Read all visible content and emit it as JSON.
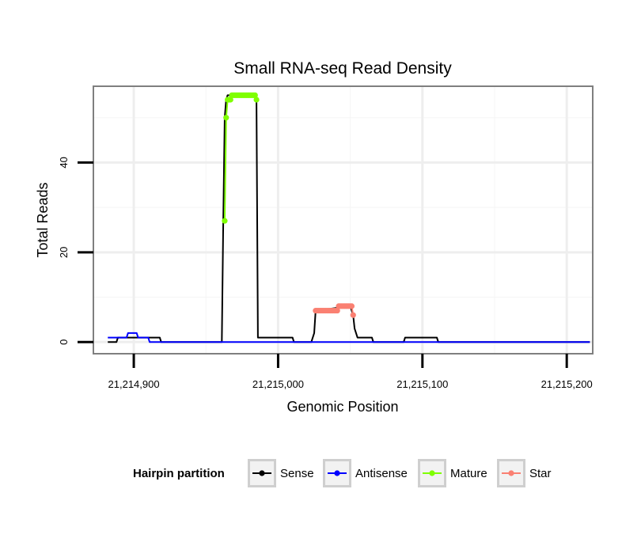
{
  "chart_data": {
    "type": "line",
    "title": "Small RNA-seq Read Density",
    "xlabel": "Genomic Position",
    "ylabel": "Total Reads",
    "xlim": [
      21214872,
      21215218
    ],
    "ylim": [
      -2.6,
      57
    ],
    "x_ticks": [
      21214900,
      21215000,
      21215100,
      21215200
    ],
    "x_tick_labels": [
      "21,214,900",
      "21,215,000",
      "21,215,100",
      "21,215,200"
    ],
    "y_ticks": [
      0,
      20,
      40
    ],
    "y_tick_labels": [
      "0",
      "20",
      "40"
    ],
    "grid": true,
    "legend": {
      "title": "Hairpin partition",
      "position": "bottom",
      "entries": [
        {
          "label": "Sense",
          "color": "#000000"
        },
        {
          "label": "Antisense",
          "color": "#0000ff"
        },
        {
          "label": "Mature",
          "color": "#7fff00"
        },
        {
          "label": "Star",
          "color": "#fa8072"
        }
      ]
    },
    "series": [
      {
        "name": "Sense",
        "color": "#000000",
        "points": [
          [
            21214882,
            0
          ],
          [
            21214888,
            0
          ],
          [
            21214889,
            1
          ],
          [
            21214918,
            1
          ],
          [
            21214919,
            0
          ],
          [
            21214961,
            0
          ],
          [
            21214962,
            27
          ],
          [
            21214963,
            50
          ],
          [
            21214964,
            54
          ],
          [
            21214965,
            55
          ],
          [
            21214984,
            55
          ],
          [
            21214985,
            54
          ],
          [
            21214986,
            1
          ],
          [
            21215010,
            1
          ],
          [
            21215011,
            0
          ],
          [
            21215023,
            0
          ],
          [
            21215025,
            2
          ],
          [
            21215026,
            7
          ],
          [
            21215050,
            8
          ],
          [
            21215052,
            6
          ],
          [
            21215053,
            3
          ],
          [
            21215055,
            1
          ],
          [
            21215065,
            1
          ],
          [
            21215066,
            0
          ],
          [
            21215087,
            0
          ],
          [
            21215088,
            1
          ],
          [
            21215110,
            1
          ],
          [
            21215111,
            0
          ],
          [
            21215216,
            0
          ]
        ]
      },
      {
        "name": "Antisense",
        "color": "#0000ff",
        "points": [
          [
            21214882,
            1
          ],
          [
            21214895,
            1
          ],
          [
            21214896,
            2
          ],
          [
            21214902,
            2
          ],
          [
            21214903,
            1
          ],
          [
            21214910,
            1
          ],
          [
            21214911,
            0
          ],
          [
            21215216,
            0
          ]
        ]
      },
      {
        "name": "Mature",
        "color": "#7fff00",
        "points": [
          [
            21214963,
            27
          ],
          [
            21214964,
            50
          ],
          [
            21214965,
            54
          ],
          [
            21214966,
            54
          ],
          [
            21214967,
            54
          ],
          [
            21214968,
            55
          ],
          [
            21214969,
            55
          ],
          [
            21214970,
            55
          ],
          [
            21214971,
            55
          ],
          [
            21214972,
            55
          ],
          [
            21214973,
            55
          ],
          [
            21214974,
            55
          ],
          [
            21214975,
            55
          ],
          [
            21214976,
            55
          ],
          [
            21214977,
            55
          ],
          [
            21214978,
            55
          ],
          [
            21214979,
            55
          ],
          [
            21214980,
            55
          ],
          [
            21214981,
            55
          ],
          [
            21214982,
            55
          ],
          [
            21214983,
            55
          ],
          [
            21214984,
            55
          ],
          [
            21214985,
            54
          ]
        ]
      },
      {
        "name": "Star",
        "color": "#fa8072",
        "points": [
          [
            21215026,
            7
          ],
          [
            21215027,
            7
          ],
          [
            21215028,
            7
          ],
          [
            21215029,
            7
          ],
          [
            21215030,
            7
          ],
          [
            21215031,
            7
          ],
          [
            21215032,
            7
          ],
          [
            21215033,
            7
          ],
          [
            21215034,
            7
          ],
          [
            21215035,
            7
          ],
          [
            21215036,
            7
          ],
          [
            21215037,
            7
          ],
          [
            21215038,
            7
          ],
          [
            21215039,
            7
          ],
          [
            21215040,
            7
          ],
          [
            21215041,
            7
          ],
          [
            21215042,
            8
          ],
          [
            21215043,
            8
          ],
          [
            21215044,
            8
          ],
          [
            21215045,
            8
          ],
          [
            21215046,
            8
          ],
          [
            21215047,
            8
          ],
          [
            21215048,
            8
          ],
          [
            21215049,
            8
          ],
          [
            21215050,
            8
          ],
          [
            21215051,
            8
          ],
          [
            21215052,
            6
          ]
        ]
      }
    ]
  }
}
